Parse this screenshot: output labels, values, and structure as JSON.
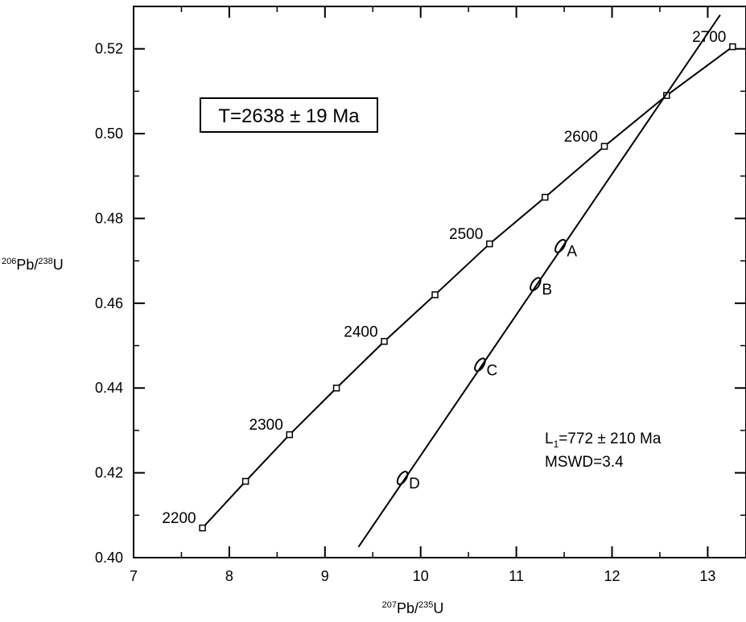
{
  "chart_data": {
    "type": "scatter",
    "title": "",
    "xlabel": {
      "superscript": "207",
      "text": "Pb/",
      "superscript2": "235",
      "text2": "U"
    },
    "ylabel": {
      "superscript": "206",
      "text": "Pb/",
      "superscript2": "238",
      "text2": "U"
    },
    "xlim": [
      7,
      13.4
    ],
    "ylim": [
      0.4,
      0.53
    ],
    "x_ticks": [
      7,
      8,
      9,
      10,
      11,
      12,
      13
    ],
    "x_tick_labels": [
      "7",
      "8",
      "9",
      "10",
      "11",
      "12",
      "13"
    ],
    "y_ticks": [
      0.4,
      0.42,
      0.44,
      0.46,
      0.48,
      0.5,
      0.52
    ],
    "y_tick_labels": [
      "0.40",
      "0.42",
      "0.44",
      "0.46",
      "0.48",
      "0.50",
      "0.52"
    ],
    "grid": false,
    "concordia": {
      "points": [
        {
          "x": 7.72,
          "y": 0.407,
          "label": "2200"
        },
        {
          "x": 8.17,
          "y": 0.418,
          "label": ""
        },
        {
          "x": 8.63,
          "y": 0.429,
          "label": "2300"
        },
        {
          "x": 9.12,
          "y": 0.44,
          "label": ""
        },
        {
          "x": 9.62,
          "y": 0.451,
          "label": "2400"
        },
        {
          "x": 10.15,
          "y": 0.462,
          "label": ""
        },
        {
          "x": 10.72,
          "y": 0.474,
          "label": "2500"
        },
        {
          "x": 11.3,
          "y": 0.485,
          "label": ""
        },
        {
          "x": 11.92,
          "y": 0.497,
          "label": "2600"
        },
        {
          "x": 12.57,
          "y": 0.509,
          "label": ""
        },
        {
          "x": 13.26,
          "y": 0.5205,
          "label": "2700"
        }
      ]
    },
    "discordia": {
      "x": [
        9.35,
        13.13
      ],
      "y": [
        0.4025,
        0.528
      ]
    },
    "samples": [
      {
        "label": "A",
        "x": 11.46,
        "y": 0.4735
      },
      {
        "label": "B",
        "x": 11.2,
        "y": 0.4645
      },
      {
        "label": "C",
        "x": 10.62,
        "y": 0.4455
      },
      {
        "label": "D",
        "x": 9.81,
        "y": 0.4188
      }
    ],
    "annotations": {
      "upper_intercept": "T=2638 ± 19 Ma",
      "lower_intercept": {
        "prefix": "L",
        "subscript": "1",
        "text": "=772 ± 210 Ma"
      },
      "mswd": "MSWD=3.4"
    }
  }
}
